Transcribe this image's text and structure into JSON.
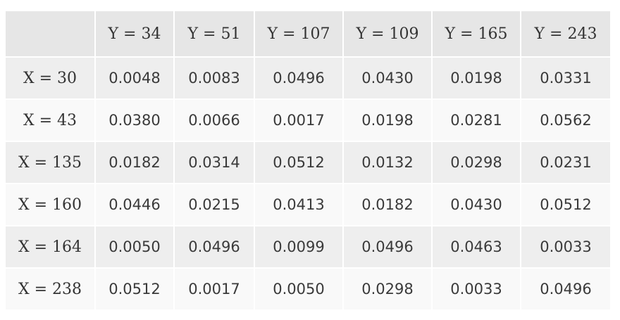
{
  "table": {
    "columns": [
      "Y = 34",
      "Y = 51",
      "Y = 107",
      "Y = 109",
      "Y = 165",
      "Y = 243"
    ],
    "row_labels": [
      "X = 30",
      "X = 43",
      "X = 135",
      "X = 160",
      "X = 164",
      "X = 238"
    ],
    "rows": [
      [
        "0.0048",
        "0.0083",
        "0.0496",
        "0.0430",
        "0.0198",
        "0.0331"
      ],
      [
        "0.0380",
        "0.0066",
        "0.0017",
        "0.0198",
        "0.0281",
        "0.0562"
      ],
      [
        "0.0182",
        "0.0314",
        "0.0512",
        "0.0132",
        "0.0298",
        "0.0231"
      ],
      [
        "0.0446",
        "0.0215",
        "0.0413",
        "0.0182",
        "0.0430",
        "0.0512"
      ],
      [
        "0.0050",
        "0.0496",
        "0.0099",
        "0.0496",
        "0.0463",
        "0.0033"
      ],
      [
        "0.0512",
        "0.0017",
        "0.0050",
        "0.0298",
        "0.0033",
        "0.0496"
      ]
    ]
  }
}
